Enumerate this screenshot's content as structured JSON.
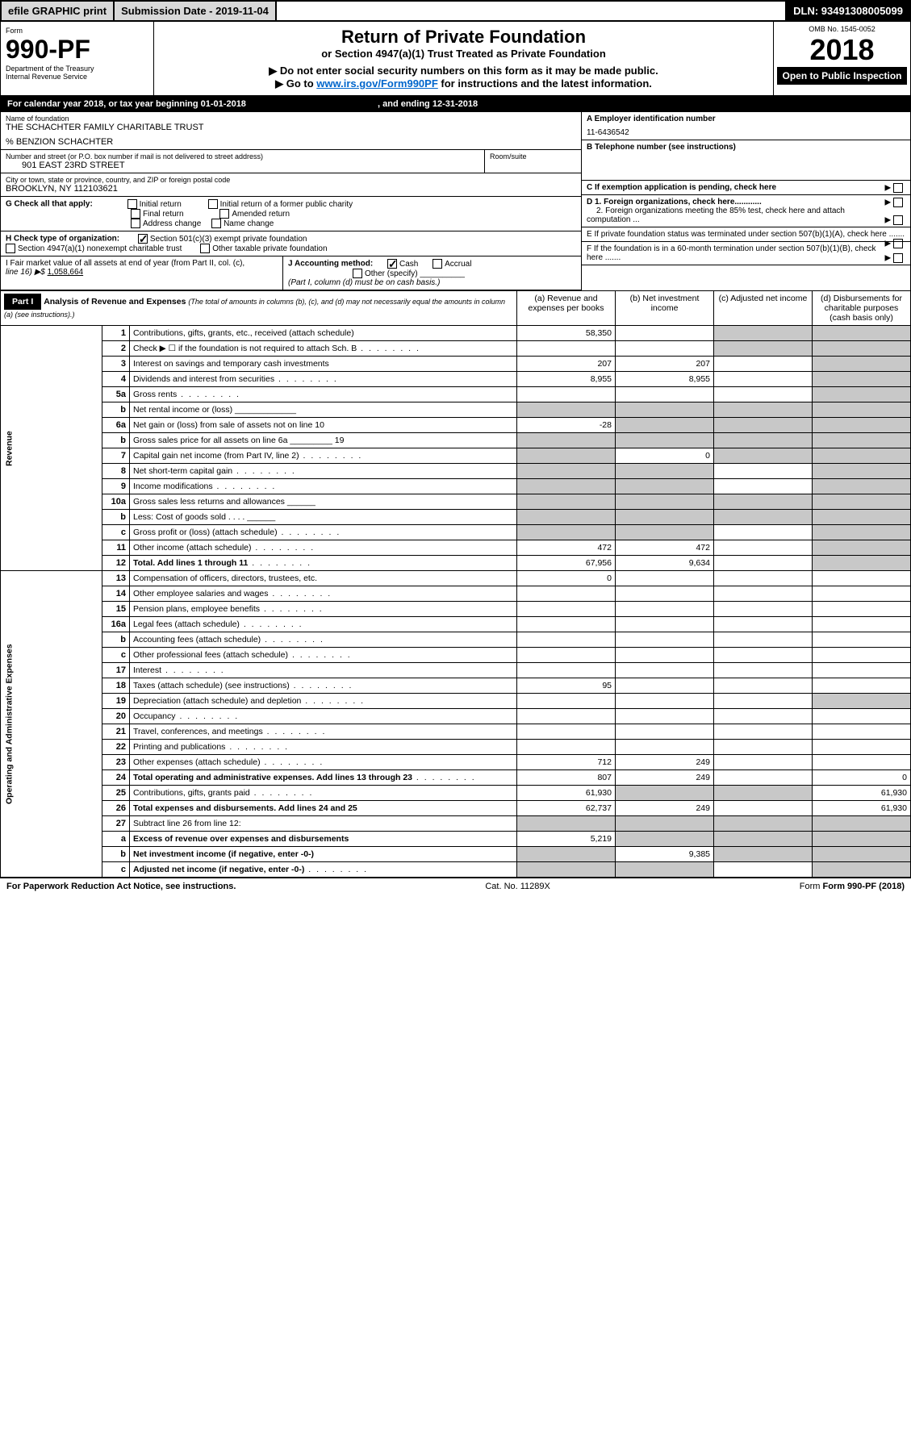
{
  "topbar": {
    "efile": "efile GRAPHIC print",
    "submission": "Submission Date - 2019-11-04",
    "dln": "DLN: 93491308005099"
  },
  "header": {
    "form_label": "Form",
    "form_no": "990-PF",
    "dept": "Department of the Treasury",
    "irs": "Internal Revenue Service",
    "title": "Return of Private Foundation",
    "subtitle": "or Section 4947(a)(1) Trust Treated as Private Foundation",
    "note1": "▶ Do not enter social security numbers on this form as it may be made public.",
    "note2_pre": "▶ Go to ",
    "note2_link": "www.irs.gov/Form990PF",
    "note2_post": " for instructions and the latest information.",
    "omb": "OMB No. 1545-0052",
    "year": "2018",
    "openpub": "Open to Public Inspection"
  },
  "calendar": {
    "text_pre": "For calendar year 2018, or tax year beginning ",
    "begin": "01-01-2018",
    "mid": " , and ending ",
    "end": "12-31-2018"
  },
  "info": {
    "name_label": "Name of foundation",
    "name": "THE SCHACHTER FAMILY CHARITABLE TRUST",
    "care_of": "% BENZION SCHACHTER",
    "addr_label": "Number and street (or P.O. box number if mail is not delivered to street address)",
    "addr": "901 EAST 23RD STREET",
    "room_label": "Room/suite",
    "city_label": "City or town, state or province, country, and ZIP or foreign postal code",
    "city": "BROOKLYN, NY  112103621",
    "ein_label": "A Employer identification number",
    "ein": "11-6436542",
    "phone_label": "B Telephone number (see instructions)",
    "c_label": "C If exemption application is pending, check here",
    "d1": "D 1. Foreign organizations, check here............",
    "d2": "2. Foreign organizations meeting the 85% test, check here and attach computation ...",
    "e_label": "E  If private foundation status was terminated under section 507(b)(1)(A), check here .......",
    "f_label": "F  If the foundation is in a 60-month termination under section 507(b)(1)(B), check here .......",
    "g_label": "G Check all that apply:",
    "g_opts": [
      "Initial return",
      "Initial return of a former public charity",
      "Final return",
      "Amended return",
      "Address change",
      "Name change"
    ],
    "h_label": "H Check type of organization:",
    "h_opts": [
      "Section 501(c)(3) exempt private foundation",
      "Section 4947(a)(1) nonexempt charitable trust",
      "Other taxable private foundation"
    ],
    "i_label": "I Fair market value of all assets at end of year (from Part II, col. (c),",
    "i_line": "line 16) ▶$",
    "i_val": "1,058,664",
    "j_label": "J Accounting method:",
    "j_opts": [
      "Cash",
      "Accrual"
    ],
    "j_other": "Other (specify)",
    "j_note": "(Part I, column (d) must be on cash basis.)"
  },
  "part1": {
    "label": "Part I",
    "title": "Analysis of Revenue and Expenses",
    "desc": "(The total of amounts in columns (b), (c), and (d) may not necessarily equal the amounts in column (a) (see instructions).)",
    "cols": {
      "a": "(a)    Revenue and expenses per books",
      "b": "(b)  Net investment income",
      "c": "(c)  Adjusted net income",
      "d": "(d)  Disbursements for charitable purposes (cash basis only)"
    },
    "rotate_rev": "Revenue",
    "rotate_exp": "Operating and Administrative Expenses"
  },
  "rows": [
    {
      "ln": "1",
      "desc": "Contributions, gifts, grants, etc., received (attach schedule)",
      "a": "58,350",
      "b": "",
      "c": "s",
      "d": "s"
    },
    {
      "ln": "2",
      "desc": "Check ▶ ☐ if the foundation is not required to attach Sch. B",
      "a": "",
      "b": "",
      "c": "s",
      "d": "s",
      "dots": true
    },
    {
      "ln": "3",
      "desc": "Interest on savings and temporary cash investments",
      "a": "207",
      "b": "207",
      "c": "",
      "d": "s"
    },
    {
      "ln": "4",
      "desc": "Dividends and interest from securities",
      "a": "8,955",
      "b": "8,955",
      "c": "",
      "d": "s",
      "dots": true
    },
    {
      "ln": "5a",
      "desc": "Gross rents",
      "a": "",
      "b": "",
      "c": "",
      "d": "s",
      "dots": true
    },
    {
      "ln": "b",
      "desc": "Net rental income or (loss)  _____________",
      "a": "s",
      "b": "s",
      "c": "s",
      "d": "s"
    },
    {
      "ln": "6a",
      "desc": "Net gain or (loss) from sale of assets not on line 10",
      "a": "-28",
      "b": "s",
      "c": "s",
      "d": "s"
    },
    {
      "ln": "b",
      "desc": "Gross sales price for all assets on line 6a _________ 19",
      "a": "s",
      "b": "s",
      "c": "s",
      "d": "s"
    },
    {
      "ln": "7",
      "desc": "Capital gain net income (from Part IV, line 2)",
      "a": "s",
      "b": "0",
      "c": "s",
      "d": "s",
      "dots": true
    },
    {
      "ln": "8",
      "desc": "Net short-term capital gain",
      "a": "s",
      "b": "s",
      "c": "",
      "d": "s",
      "dots": true
    },
    {
      "ln": "9",
      "desc": "Income modifications",
      "a": "s",
      "b": "s",
      "c": "",
      "d": "s",
      "dots": true
    },
    {
      "ln": "10a",
      "desc": "Gross sales less returns and allowances  ______",
      "a": "s",
      "b": "s",
      "c": "s",
      "d": "s"
    },
    {
      "ln": "b",
      "desc": "Less: Cost of goods sold         .   .   .   .  ______",
      "a": "s",
      "b": "s",
      "c": "s",
      "d": "s"
    },
    {
      "ln": "c",
      "desc": "Gross profit or (loss) (attach schedule)",
      "a": "s",
      "b": "s",
      "c": "",
      "d": "s",
      "dots": true
    },
    {
      "ln": "11",
      "desc": "Other income (attach schedule)",
      "a": "472",
      "b": "472",
      "c": "",
      "d": "s",
      "dots": true
    },
    {
      "ln": "12",
      "desc": "Total. Add lines 1 through 11",
      "a": "67,956",
      "b": "9,634",
      "c": "",
      "d": "s",
      "bold": true,
      "dots": true
    },
    {
      "ln": "13",
      "desc": "Compensation of officers, directors, trustees, etc.",
      "a": "0",
      "b": "",
      "c": "",
      "d": ""
    },
    {
      "ln": "14",
      "desc": "Other employee salaries and wages",
      "a": "",
      "b": "",
      "c": "",
      "d": "",
      "dots": true
    },
    {
      "ln": "15",
      "desc": "Pension plans, employee benefits",
      "a": "",
      "b": "",
      "c": "",
      "d": "",
      "dots": true
    },
    {
      "ln": "16a",
      "desc": "Legal fees (attach schedule)",
      "a": "",
      "b": "",
      "c": "",
      "d": "",
      "dots": true
    },
    {
      "ln": "b",
      "desc": "Accounting fees (attach schedule)",
      "a": "",
      "b": "",
      "c": "",
      "d": "",
      "dots": true
    },
    {
      "ln": "c",
      "desc": "Other professional fees (attach schedule)",
      "a": "",
      "b": "",
      "c": "",
      "d": "",
      "dots": true
    },
    {
      "ln": "17",
      "desc": "Interest",
      "a": "",
      "b": "",
      "c": "",
      "d": "",
      "dots": true
    },
    {
      "ln": "18",
      "desc": "Taxes (attach schedule) (see instructions)",
      "a": "95",
      "b": "",
      "c": "",
      "d": "",
      "dots": true
    },
    {
      "ln": "19",
      "desc": "Depreciation (attach schedule) and depletion",
      "a": "",
      "b": "",
      "c": "",
      "d": "s",
      "dots": true
    },
    {
      "ln": "20",
      "desc": "Occupancy",
      "a": "",
      "b": "",
      "c": "",
      "d": "",
      "dots": true
    },
    {
      "ln": "21",
      "desc": "Travel, conferences, and meetings",
      "a": "",
      "b": "",
      "c": "",
      "d": "",
      "dots": true
    },
    {
      "ln": "22",
      "desc": "Printing and publications",
      "a": "",
      "b": "",
      "c": "",
      "d": "",
      "dots": true
    },
    {
      "ln": "23",
      "desc": "Other expenses (attach schedule)",
      "a": "712",
      "b": "249",
      "c": "",
      "d": "",
      "dots": true
    },
    {
      "ln": "24",
      "desc": "Total operating and administrative expenses. Add lines 13 through 23",
      "a": "807",
      "b": "249",
      "c": "",
      "d": "0",
      "bold": true,
      "dots": true
    },
    {
      "ln": "25",
      "desc": "Contributions, gifts, grants paid",
      "a": "61,930",
      "b": "s",
      "c": "s",
      "d": "61,930",
      "dots": true
    },
    {
      "ln": "26",
      "desc": "Total expenses and disbursements. Add lines 24 and 25",
      "a": "62,737",
      "b": "249",
      "c": "",
      "d": "61,930",
      "bold": true
    },
    {
      "ln": "27",
      "desc": "Subtract line 26 from line 12:",
      "a": "s",
      "b": "s",
      "c": "s",
      "d": "s"
    },
    {
      "ln": "a",
      "desc": "Excess of revenue over expenses and disbursements",
      "a": "5,219",
      "b": "s",
      "c": "s",
      "d": "s",
      "bold": true
    },
    {
      "ln": "b",
      "desc": "Net investment income (if negative, enter -0-)",
      "a": "s",
      "b": "9,385",
      "c": "s",
      "d": "s",
      "bold": true
    },
    {
      "ln": "c",
      "desc": "Adjusted net income (if negative, enter -0-)",
      "a": "s",
      "b": "s",
      "c": "",
      "d": "s",
      "bold": true,
      "dots": true
    }
  ],
  "footer": {
    "left": "For Paperwork Reduction Act Notice, see instructions.",
    "mid": "Cat. No. 11289X",
    "right": "Form 990-PF (2018)"
  }
}
